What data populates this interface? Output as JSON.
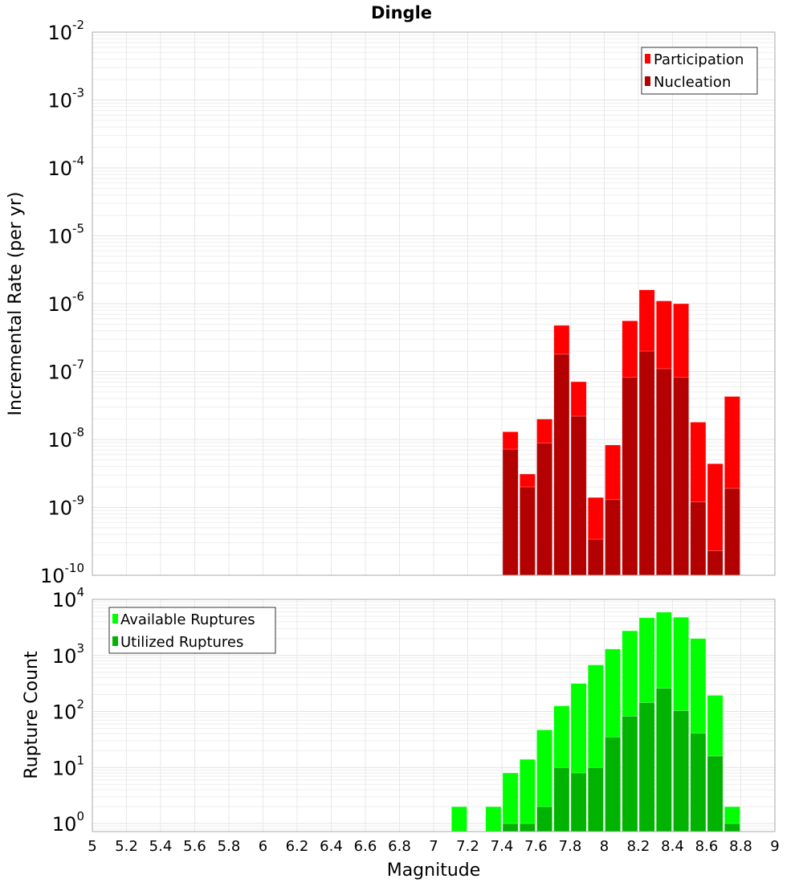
{
  "chart_data": [
    {
      "type": "bar",
      "title": "Dingle",
      "xlabel": "Magnitude",
      "ylabel": "Incremental Rate (per yr)",
      "yscale": "log",
      "ylim": [
        1e-10,
        0.01
      ],
      "xlim": [
        5,
        9
      ],
      "bin_width": 0.1,
      "grid": true,
      "legend_position": "top-right",
      "x": [
        7.45,
        7.55,
        7.65,
        7.75,
        7.85,
        7.95,
        8.05,
        8.15,
        8.25,
        8.35,
        8.45,
        8.55,
        8.65,
        8.75
      ],
      "series": [
        {
          "name": "Participation",
          "color": "#ff0000",
          "values": [
            1.3e-08,
            3.1e-09,
            2e-08,
            4.8e-07,
            7.1e-08,
            1.4e-09,
            8.3e-09,
            5.6e-07,
            1.6e-06,
            1.1e-06,
            1e-06,
            1.8e-08,
            4.4e-09,
            4.3e-08
          ]
        },
        {
          "name": "Nucleation",
          "color": "#b30000",
          "values": [
            7.2e-09,
            2e-09,
            8.9e-09,
            1.8e-07,
            2.2e-08,
            3.4e-10,
            1.3e-09,
            8.3e-08,
            2e-07,
            1.1e-07,
            8.3e-08,
            1.2e-09,
            2.3e-10,
            1.9e-09
          ]
        }
      ],
      "ytick_exponents": [
        "-10",
        "-9",
        "-8",
        "-7",
        "-6",
        "-5",
        "-4",
        "-3",
        "-2"
      ],
      "ytick_base": "10"
    },
    {
      "type": "bar",
      "xlabel": "Magnitude",
      "ylabel": "Rupture Count",
      "yscale": "log",
      "ylim": [
        0.72,
        10000
      ],
      "xlim": [
        5,
        9
      ],
      "bin_width": 0.1,
      "grid": true,
      "legend_position": "top-left",
      "x": [
        7.15,
        7.35,
        7.45,
        7.55,
        7.65,
        7.75,
        7.85,
        7.95,
        8.05,
        8.15,
        8.25,
        8.35,
        8.45,
        8.55,
        8.65,
        8.75
      ],
      "series": [
        {
          "name": "Available Ruptures",
          "color": "#00ff00",
          "values": [
            2,
            2,
            8,
            14,
            47,
            126,
            316,
            676,
            1300,
            2750,
            4700,
            5900,
            4800,
            2000,
            194,
            2
          ]
        },
        {
          "name": "Utilized Ruptures",
          "color": "#00b300",
          "values": [
            0,
            0,
            1,
            1,
            2,
            10,
            8,
            10,
            35,
            82,
            144,
            258,
            103,
            41,
            16,
            1
          ]
        }
      ],
      "ytick_exponents": [
        "0",
        "1",
        "2",
        "3",
        "4"
      ],
      "ytick_base": "10"
    }
  ],
  "xtick_labels": [
    "5",
    "5.2",
    "5.4",
    "5.6",
    "5.8",
    "6",
    "6.2",
    "6.4",
    "6.6",
    "6.8",
    "7",
    "7.2",
    "7.4",
    "7.6",
    "7.8",
    "8",
    "8.2",
    "8.4",
    "8.6",
    "8.8",
    "9"
  ]
}
